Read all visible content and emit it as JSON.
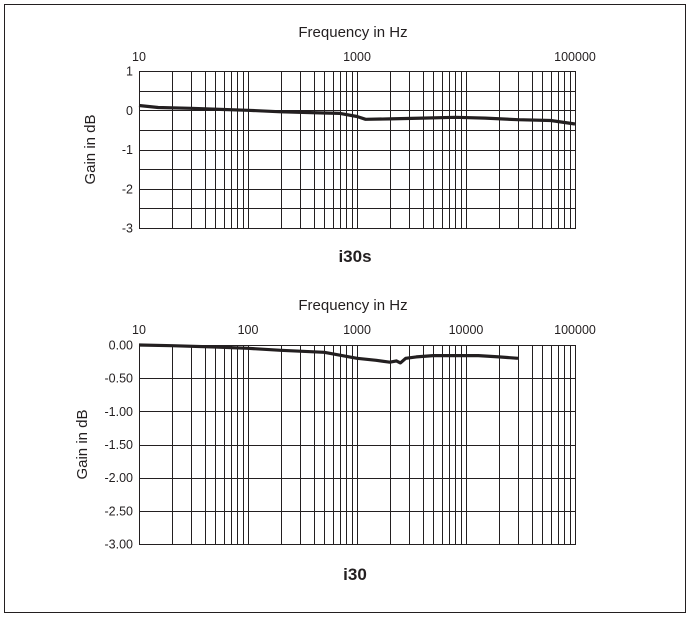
{
  "chart_data": [
    {
      "type": "line",
      "title": "i30s",
      "xlabel": "Frequency in Hz",
      "ylabel": "Gain in dB",
      "x_scale": "log",
      "xlim": [
        10,
        100000
      ],
      "ylim": [
        -3,
        1
      ],
      "x_tick_labels": [
        "10",
        "1000",
        "100000"
      ],
      "x_tick_values": [
        10,
        1000,
        100000
      ],
      "y_tick_labels": [
        "1",
        "0",
        "-1",
        "-2",
        "-3"
      ],
      "y_tick_values": [
        1,
        0,
        -1,
        -2,
        -3
      ],
      "y_grid": [
        1,
        0.5,
        0,
        -0.5,
        -1,
        -1.5,
        -2,
        -2.5,
        -3
      ],
      "grid": true,
      "series": [
        {
          "x": [
            10,
            15,
            30,
            60,
            100,
            200,
            500,
            700,
            1000,
            1200,
            2000,
            4000,
            8000,
            15000,
            30000,
            60000,
            100000
          ],
          "y": [
            0.12,
            0.07,
            0.05,
            0.02,
            0.0,
            -0.04,
            -0.07,
            -0.08,
            -0.16,
            -0.23,
            -0.22,
            -0.2,
            -0.18,
            -0.2,
            -0.24,
            -0.26,
            -0.35
          ]
        }
      ]
    },
    {
      "type": "line",
      "title": "i30",
      "xlabel": "Frequency in Hz",
      "ylabel": "Gain in dB",
      "x_scale": "log",
      "xlim": [
        10,
        100000
      ],
      "ylim": [
        -3,
        0
      ],
      "x_tick_labels": [
        "10",
        "100",
        "1000",
        "10000",
        "100000"
      ],
      "x_tick_values": [
        10,
        100,
        1000,
        10000,
        100000
      ],
      "y_tick_labels": [
        "0.00",
        "-0.50",
        "-1.00",
        "-1.50",
        "-2.00",
        "-2.50",
        "-3.00"
      ],
      "y_tick_values": [
        0,
        -0.5,
        -1,
        -1.5,
        -2,
        -2.5,
        -3
      ],
      "y_grid": [
        0,
        -0.5,
        -1,
        -1.5,
        -2,
        -2.5,
        -3
      ],
      "grid": true,
      "series": [
        {
          "x": [
            10,
            20,
            50,
            100,
            200,
            500,
            1000,
            1500,
            2000,
            2300,
            2500,
            2800,
            3500,
            5000,
            8000,
            13000,
            20000,
            30000
          ],
          "y": [
            0.0,
            -0.01,
            -0.03,
            -0.05,
            -0.08,
            -0.11,
            -0.2,
            -0.23,
            -0.26,
            -0.24,
            -0.27,
            -0.2,
            -0.18,
            -0.16,
            -0.16,
            -0.16,
            -0.18,
            -0.2
          ]
        }
      ]
    }
  ]
}
